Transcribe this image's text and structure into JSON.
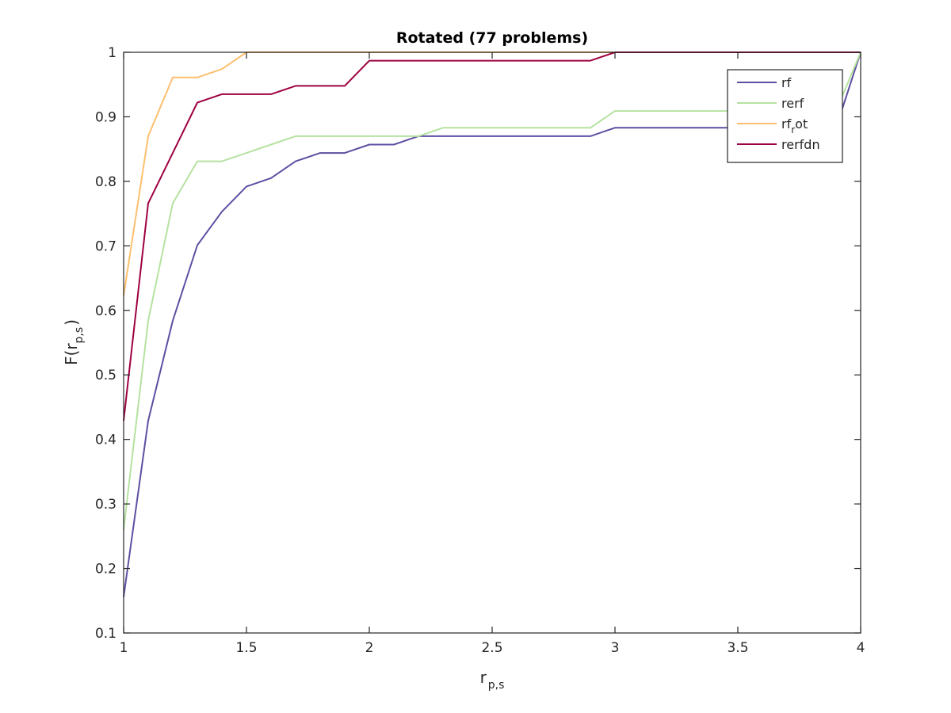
{
  "chart_data": {
    "type": "line",
    "title": "Rotated (77 problems)",
    "xlabel": {
      "main": "r",
      "sub": "p,s"
    },
    "ylabel": {
      "main": "F(r",
      "sub": "p,s",
      "close": ")"
    },
    "xlim": [
      1,
      4
    ],
    "ylim": [
      0.1,
      1
    ],
    "xticks": [
      1,
      1.5,
      2,
      2.5,
      3,
      3.5,
      4
    ],
    "xtick_labels": [
      "1",
      "1.5",
      "2",
      "2.5",
      "3",
      "3.5",
      "4"
    ],
    "yticks": [
      0.1,
      0.2,
      0.3,
      0.4,
      0.5,
      0.6,
      0.7,
      0.8,
      0.9,
      1
    ],
    "ytick_labels": [
      "0.1",
      "0.2",
      "0.3",
      "0.4",
      "0.5",
      "0.6",
      "0.7",
      "0.8",
      "0.9",
      "1"
    ],
    "grid": false,
    "legend_position": "top-right",
    "series": [
      {
        "name": "rf",
        "legend": {
          "main": "rf"
        },
        "color": "#5e4fa2",
        "x": [
          1,
          1.1,
          1.2,
          1.3,
          1.4,
          1.5,
          1.6,
          1.7,
          1.8,
          1.9,
          2,
          2.1,
          2.2,
          2.9,
          3,
          3.9,
          4
        ],
        "y": [
          0.156,
          0.429,
          0.584,
          0.701,
          0.753,
          0.792,
          0.805,
          0.831,
          0.844,
          0.844,
          0.857,
          0.857,
          0.87,
          0.87,
          0.883,
          0.883,
          1.0
        ]
      },
      {
        "name": "rerf",
        "legend": {
          "main": "rerf"
        },
        "color": "#b5e2a0",
        "x": [
          1,
          1.1,
          1.2,
          1.3,
          1.4,
          1.5,
          1.6,
          1.7,
          1.8,
          2,
          2.2,
          2.3,
          2.9,
          3,
          3.9,
          4
        ],
        "y": [
          0.26,
          0.584,
          0.766,
          0.831,
          0.831,
          0.844,
          0.857,
          0.87,
          0.87,
          0.87,
          0.87,
          0.883,
          0.883,
          0.909,
          0.909,
          1.0
        ]
      },
      {
        "name": "rf_rot",
        "legend": {
          "main": "rf",
          "sub": "r",
          "rest": "ot"
        },
        "color": "#fdbf6f",
        "x": [
          1,
          1.1,
          1.2,
          1.3,
          1.4,
          1.5,
          4
        ],
        "y": [
          0.623,
          0.87,
          0.961,
          0.961,
          0.974,
          1.0,
          1.0
        ]
      },
      {
        "name": "rerfdn",
        "legend": {
          "main": "rerfdn"
        },
        "color": "#9e0142",
        "x": [
          1,
          1.1,
          1.2,
          1.3,
          1.4,
          1.5,
          1.6,
          1.7,
          1.8,
          1.9,
          2,
          2.9,
          3,
          4
        ],
        "y": [
          0.429,
          0.766,
          0.844,
          0.922,
          0.935,
          0.935,
          0.935,
          0.948,
          0.948,
          0.948,
          0.987,
          0.987,
          1.0,
          1.0
        ]
      }
    ]
  }
}
